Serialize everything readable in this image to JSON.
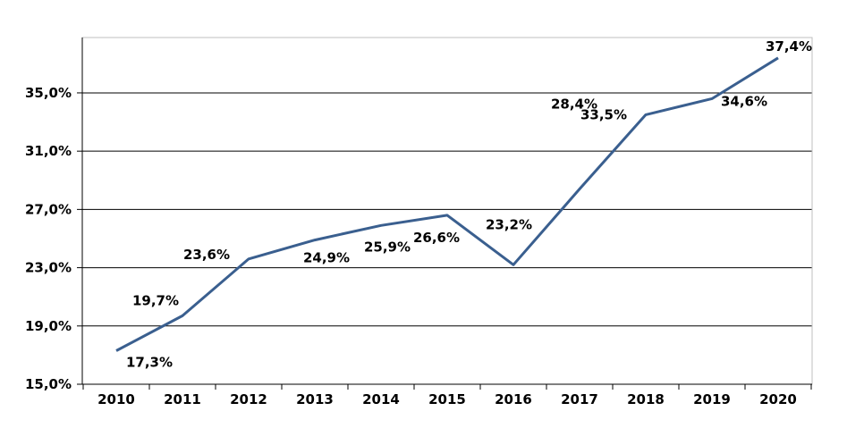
{
  "chart_data": {
    "type": "line",
    "title": "",
    "xlabel": "",
    "ylabel": "",
    "categories": [
      "2010",
      "2011",
      "2012",
      "2013",
      "2014",
      "2015",
      "2016",
      "2017",
      "2018",
      "2019",
      "2020"
    ],
    "series": [
      {
        "values": [
          17.3,
          19.7,
          23.6,
          24.9,
          25.9,
          26.6,
          23.2,
          28.4,
          33.5,
          34.6,
          37.4
        ]
      }
    ],
    "data_labels": [
      "17,3%",
      "19,7%",
      "23,6%",
      "24,9%",
      "25,9%",
      "26,6%",
      "23,2%",
      "28,4%",
      "33,5%",
      "34,6%",
      "37,4%"
    ],
    "ylim": [
      15,
      38.8
    ],
    "yticks": [
      15,
      19,
      23,
      27,
      31,
      35
    ],
    "ytick_labels": [
      "15,0%",
      "19,0%",
      "23,0%",
      "27,0%",
      "31,0%",
      "35,0%"
    ],
    "grid": true,
    "legend": "none",
    "colors": {
      "line": "#3a5f8f",
      "grid": "#000000",
      "frame": "#bfbfbf"
    }
  }
}
